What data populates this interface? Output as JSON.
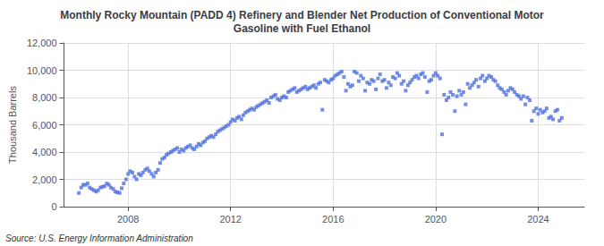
{
  "chart_data": {
    "type": "scatter",
    "title": "Monthly Rocky Mountain (PADD 4) Refinery and Blender Net Production of Conventional Motor\nGasoline with Fuel Ethanol",
    "ylabel": "Thousand Barrels",
    "annotations": [
      "Source: U.S. Energy Information Administration"
    ],
    "marker": "square",
    "grid": true,
    "xlim": [
      2005.5,
      2025.8
    ],
    "xticks": [
      2008,
      2012,
      2016,
      2020,
      2024
    ],
    "ylim": [
      0,
      12000
    ],
    "yticks": [
      0,
      {
        "value": 2000,
        "label": "2,000"
      },
      {
        "value": 4000,
        "label": "4,000"
      },
      {
        "value": 6000,
        "label": "6,000"
      },
      {
        "value": 8000,
        "label": "8,000"
      },
      {
        "value": 10000,
        "label": "10,000"
      },
      {
        "value": 12000,
        "label": "12,000"
      }
    ],
    "x": [
      2006.08,
      2006.17,
      2006.25,
      2006.33,
      2006.42,
      2006.5,
      2006.58,
      2006.67,
      2006.75,
      2006.83,
      2006.92,
      2007.0,
      2007.08,
      2007.17,
      2007.25,
      2007.33,
      2007.42,
      2007.5,
      2007.58,
      2007.67,
      2007.75,
      2007.83,
      2007.92,
      2008.0,
      2008.08,
      2008.17,
      2008.25,
      2008.33,
      2008.42,
      2008.5,
      2008.58,
      2008.67,
      2008.75,
      2008.83,
      2008.92,
      2009.0,
      2009.08,
      2009.17,
      2009.25,
      2009.33,
      2009.42,
      2009.5,
      2009.58,
      2009.67,
      2009.75,
      2009.83,
      2009.92,
      2010.0,
      2010.08,
      2010.17,
      2010.25,
      2010.33,
      2010.42,
      2010.5,
      2010.58,
      2010.67,
      2010.75,
      2010.83,
      2010.92,
      2011.0,
      2011.08,
      2011.17,
      2011.25,
      2011.33,
      2011.42,
      2011.5,
      2011.58,
      2011.67,
      2011.75,
      2011.83,
      2011.92,
      2012.0,
      2012.08,
      2012.17,
      2012.25,
      2012.33,
      2012.42,
      2012.5,
      2012.58,
      2012.67,
      2012.75,
      2012.83,
      2012.92,
      2013.0,
      2013.08,
      2013.17,
      2013.25,
      2013.33,
      2013.42,
      2013.5,
      2013.58,
      2013.67,
      2013.75,
      2013.83,
      2013.92,
      2014.0,
      2014.08,
      2014.17,
      2014.25,
      2014.33,
      2014.42,
      2014.5,
      2014.58,
      2014.67,
      2014.75,
      2014.83,
      2014.92,
      2015.0,
      2015.08,
      2015.17,
      2015.25,
      2015.33,
      2015.42,
      2015.5,
      2015.58,
      2015.67,
      2015.75,
      2015.83,
      2015.92,
      2016.0,
      2016.08,
      2016.17,
      2016.25,
      2016.33,
      2016.42,
      2016.5,
      2016.58,
      2016.67,
      2016.75,
      2016.83,
      2016.92,
      2017.0,
      2017.08,
      2017.17,
      2017.25,
      2017.33,
      2017.42,
      2017.5,
      2017.58,
      2017.67,
      2017.75,
      2017.83,
      2017.92,
      2018.0,
      2018.08,
      2018.17,
      2018.25,
      2018.33,
      2018.42,
      2018.5,
      2018.58,
      2018.67,
      2018.75,
      2018.83,
      2018.92,
      2019.0,
      2019.08,
      2019.17,
      2019.25,
      2019.33,
      2019.42,
      2019.5,
      2019.58,
      2019.67,
      2019.75,
      2019.83,
      2019.92,
      2020.0,
      2020.08,
      2020.17,
      2020.25,
      2020.33,
      2020.42,
      2020.5,
      2020.58,
      2020.67,
      2020.75,
      2020.83,
      2020.92,
      2021.0,
      2021.08,
      2021.17,
      2021.25,
      2021.33,
      2021.42,
      2021.5,
      2021.58,
      2021.67,
      2021.75,
      2021.83,
      2021.92,
      2022.0,
      2022.08,
      2022.17,
      2022.25,
      2022.33,
      2022.42,
      2022.5,
      2022.58,
      2022.67,
      2022.75,
      2022.83,
      2022.92,
      2023.0,
      2023.08,
      2023.17,
      2023.25,
      2023.33,
      2023.42,
      2023.5,
      2023.58,
      2023.67,
      2023.75,
      2023.83,
      2023.92,
      2024.0,
      2024.08,
      2024.17,
      2024.25,
      2024.33,
      2024.42,
      2024.5,
      2024.58,
      2024.67,
      2024.75,
      2024.83,
      2024.92
    ],
    "values": [
      1000,
      1400,
      1600,
      1600,
      1700,
      1400,
      1300,
      1200,
      1100,
      1200,
      1400,
      1450,
      1500,
      1700,
      1600,
      1400,
      1300,
      1100,
      1050,
      1000,
      1350,
      1700,
      2000,
      2400,
      2600,
      2500,
      2200,
      2000,
      2400,
      2300,
      2500,
      2700,
      2800,
      2600,
      2400,
      2200,
      2500,
      2700,
      3200,
      3500,
      3600,
      3800,
      3900,
      4000,
      4100,
      4200,
      4300,
      4000,
      4200,
      4100,
      4300,
      4400,
      4500,
      4300,
      4200,
      4400,
      4600,
      4500,
      4700,
      4800,
      5000,
      5100,
      5200,
      5100,
      5300,
      5500,
      5600,
      5700,
      5800,
      5900,
      6000,
      6200,
      6400,
      6300,
      6500,
      6600,
      6400,
      6700,
      6900,
      7000,
      7100,
      7200,
      7100,
      7300,
      7400,
      7500,
      7600,
      7700,
      7800,
      7600,
      8000,
      8100,
      8200,
      7900,
      7800,
      8000,
      8100,
      8000,
      8400,
      8500,
      8600,
      8700,
      8400,
      8500,
      8600,
      8700,
      8800,
      8600,
      8700,
      8800,
      8900,
      8700,
      9000,
      9100,
      7100,
      9300,
      9200,
      9100,
      9300,
      9400,
      9600,
      9700,
      9800,
      9900,
      9500,
      8500,
      9000,
      8800,
      8900,
      9900,
      9800,
      9200,
      9600,
      9400,
      8500,
      9100,
      9000,
      9300,
      9200,
      8600,
      9400,
      9700,
      9200,
      9300,
      8700,
      9100,
      8900,
      9500,
      9400,
      9800,
      9600,
      9000,
      9200,
      8500,
      8900,
      9100,
      9300,
      9500,
      9600,
      9400,
      9700,
      9800,
      9500,
      8400,
      9200,
      9300,
      9600,
      9800,
      9600,
      9400,
      5300,
      8200,
      7800,
      8000,
      8400,
      8200,
      7000,
      8100,
      8500,
      8200,
      8400,
      7500,
      9000,
      8700,
      8900,
      9100,
      9300,
      8800,
      9400,
      9600,
      9200,
      9400,
      9600,
      9500,
      9300,
      9200,
      8900,
      8700,
      8600,
      8400,
      8200,
      8500,
      8700,
      8600,
      8400,
      8200,
      8100,
      7900,
      8100,
      7500,
      8000,
      7800,
      6300,
      7000,
      7200,
      6800,
      7100,
      6900,
      7000,
      7200,
      6500,
      6600,
      6400,
      7000,
      7100,
      6300,
      6500
    ]
  }
}
